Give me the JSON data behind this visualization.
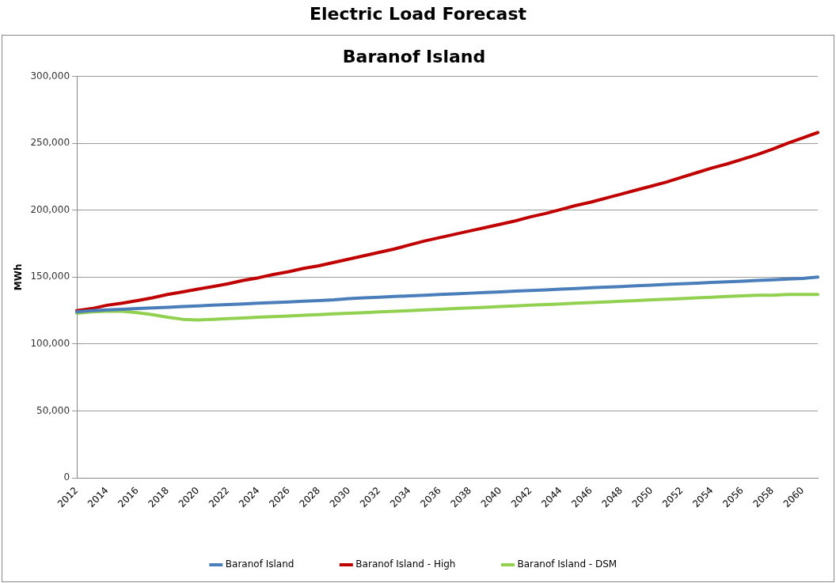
{
  "chart_data": {
    "type": "line",
    "title": "Electric Load Forecast",
    "subtitle": "Baranof Island",
    "ylabel": "MWh",
    "categories": [
      "2012",
      null,
      "2014",
      null,
      "2016",
      null,
      "2018",
      null,
      "2020",
      null,
      "2022",
      null,
      "2024",
      null,
      "2026",
      null,
      "2028",
      null,
      "2030",
      null,
      "2032",
      null,
      "2034",
      null,
      "2036",
      null,
      "2038",
      null,
      "2040",
      null,
      "2042",
      null,
      "2044",
      null,
      "2046",
      null,
      "2048",
      null,
      "2050",
      null,
      "2052",
      null,
      "2054",
      null,
      "2056",
      null,
      "2058",
      null,
      "2060",
      null
    ],
    "series": [
      {
        "name": "Baranof Island",
        "color": "#4a7ebb",
        "values": [
          124000,
          125000,
          125500,
          126000,
          126500,
          127000,
          127500,
          128000,
          128500,
          129000,
          129500,
          130000,
          130500,
          131000,
          131500,
          132000,
          132500,
          133000,
          134000,
          134500,
          135000,
          135500,
          136000,
          136500,
          137000,
          137500,
          138000,
          138500,
          139000,
          139500,
          140000,
          140500,
          141000,
          141500,
          142000,
          142500,
          143000,
          143500,
          144000,
          144500,
          145000,
          145500,
          146000,
          146500,
          147000,
          147500,
          148000,
          148500,
          149000,
          150000
        ]
      },
      {
        "name": "Baranof Island - High",
        "color": "#c00000",
        "values": [
          125000,
          126500,
          129000,
          130500,
          132500,
          134500,
          137000,
          139000,
          141000,
          143000,
          145000,
          147500,
          149500,
          152000,
          154000,
          156500,
          158500,
          161000,
          163500,
          166000,
          168500,
          171000,
          174000,
          177000,
          179500,
          182000,
          184500,
          187000,
          189500,
          192000,
          195000,
          197500,
          200500,
          203500,
          206000,
          209000,
          212000,
          215000,
          218000,
          221000,
          224500,
          228000,
          231500,
          234500,
          238000,
          241500,
          245500,
          250000,
          254000,
          258000
        ]
      },
      {
        "name": "Baranof Island - DSM",
        "color": "#92d050",
        "values": [
          123000,
          124000,
          124500,
          124500,
          123500,
          122000,
          120000,
          118500,
          118000,
          118500,
          119000,
          119500,
          120000,
          120500,
          121000,
          121500,
          122000,
          122500,
          123000,
          123500,
          124000,
          124500,
          125000,
          125500,
          126000,
          126500,
          127000,
          127500,
          128000,
          128500,
          129000,
          129500,
          130000,
          130500,
          131000,
          131500,
          132000,
          132500,
          133000,
          133500,
          134000,
          134500,
          135000,
          135500,
          136000,
          136500,
          136500,
          137000,
          137000,
          137000
        ]
      }
    ],
    "ylim": [
      0,
      300000
    ],
    "yticks": [
      {
        "value": 0,
        "label": "0"
      },
      {
        "value": 50000,
        "label": "50,000"
      },
      {
        "value": 100000,
        "label": "100,000"
      },
      {
        "value": 150000,
        "label": "150,000"
      },
      {
        "value": 200000,
        "label": "200,000"
      },
      {
        "value": 250000,
        "label": "250,000"
      },
      {
        "value": 300000,
        "label": "300,000"
      }
    ],
    "grid": "y",
    "legend": "bottom",
    "marker": "none",
    "line_style": "solid"
  }
}
